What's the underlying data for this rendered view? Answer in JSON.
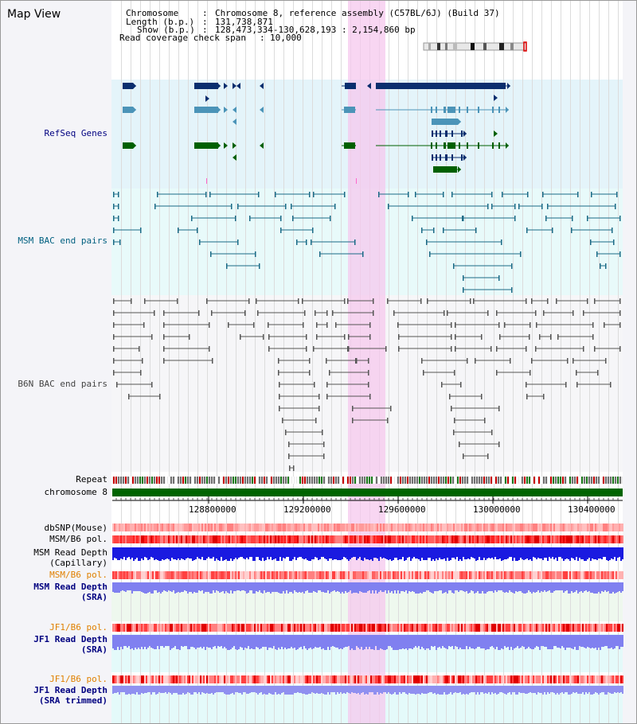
{
  "page": {
    "title": "Map View"
  },
  "header": {
    "chromosome_label": "Chromosome",
    "chromosome_value": "Chromosome 8, reference assembly (C57BL/6J) (Build 37)",
    "length_label": "Length (b.p.)",
    "length_value": "131,738,871",
    "show_label": "Show (b.p.)",
    "show_value": "128,473,334-130,628,193 : 2,154,860 bp",
    "coverage_label": "Read coverage check span",
    "coverage_value": "10,000"
  },
  "tracks": {
    "refseq": "RefSeq Genes",
    "msm_bac": "MSM BAC end pairs",
    "b6n_bac": "B6N BAC end pairs",
    "repeat": "Repeat",
    "chromosome": "chromosome 8",
    "dbsnp": "dbSNP(Mouse)",
    "msm_b6_pol": "MSM/B6 pol.",
    "msm_read_depth_line1": "MSM Read Depth",
    "msm_read_depth_line2": "(Capillary)",
    "msm_b6_pol2": "MSM/B6 pol.",
    "msm_sra_line1": "MSM Read Depth",
    "msm_sra_line2": "(SRA)",
    "jf1_b6_pol": "JF1/B6 pol.",
    "jf1_sra_line1": "JF1 Read Depth",
    "jf1_sra_line2": "(SRA)",
    "jf1_b6_pol2": "JF1/B6 pol.",
    "jf1_trim_line1": "JF1 Read Depth",
    "jf1_trim_line2": "(SRA trimmed)"
  },
  "axis": {
    "ticks": [
      "128800000",
      "129200000",
      "129600000",
      "130000000",
      "130400000"
    ]
  },
  "colors": {
    "refseq_bg": "#e4f4fa",
    "msm_bg": "#e8fafa",
    "b6n_bg": "#f4f4f8",
    "highlight": "#f6c8ee",
    "gene_dark": "#0a2e6e",
    "gene_mid": "#4b94b8",
    "gene_green": "#006000",
    "bac_teal": "#1a6a86",
    "bac_gray": "#555555",
    "chrom_bar": "#006400",
    "depth_blue": "#1a1ae0",
    "depth_periwinkle": "#8080f0",
    "label_navy": "#000080",
    "label_teal": "#006080",
    "label_orange": "#e08000",
    "label_gray": "#444444"
  }
}
